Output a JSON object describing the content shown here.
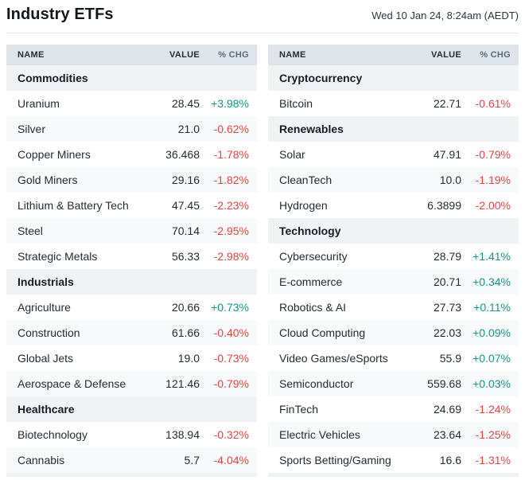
{
  "page": {
    "title": "Industry ETFs",
    "timestamp": "Wed 10 Jan 24, 8:24am (AEDT)"
  },
  "table_columns": {
    "name": "NAME",
    "value": "VALUE",
    "change": "% CHG"
  },
  "colors": {
    "positive": "#13987C",
    "negative": "#E6463F",
    "header_bar_bg": "#DEE4E9",
    "section_bg": "#F0F2F4",
    "stripe_bg": "#F8F9FA"
  },
  "tables": [
    {
      "id": "left",
      "sections": [
        {
          "label": "Commodities",
          "rows": [
            {
              "name": "Uranium",
              "value": "28.45",
              "change": "+3.98%",
              "direction": "up"
            },
            {
              "name": "Silver",
              "value": "21.0",
              "change": "-0.62%",
              "direction": "down"
            },
            {
              "name": "Copper Miners",
              "value": "36.468",
              "change": "-1.78%",
              "direction": "down"
            },
            {
              "name": "Gold Miners",
              "value": "29.16",
              "change": "-1.82%",
              "direction": "down"
            },
            {
              "name": "Lithium & Battery Tech",
              "value": "47.45",
              "change": "-2.23%",
              "direction": "down"
            },
            {
              "name": "Steel",
              "value": "70.14",
              "change": "-2.95%",
              "direction": "down"
            },
            {
              "name": "Strategic Metals",
              "value": "56.33",
              "change": "-2.98%",
              "direction": "down"
            }
          ]
        },
        {
          "label": "Industrials",
          "rows": [
            {
              "name": "Agriculture",
              "value": "20.66",
              "change": "+0.73%",
              "direction": "up"
            },
            {
              "name": "Construction",
              "value": "61.66",
              "change": "-0.40%",
              "direction": "down"
            },
            {
              "name": "Global Jets",
              "value": "19.0",
              "change": "-0.73%",
              "direction": "down"
            },
            {
              "name": "Aerospace & Defense",
              "value": "121.46",
              "change": "-0.79%",
              "direction": "down"
            }
          ]
        },
        {
          "label": "Healthcare",
          "rows": [
            {
              "name": "Biotechnology",
              "value": "138.94",
              "change": "-0.32%",
              "direction": "down"
            },
            {
              "name": "Cannabis",
              "value": "5.7",
              "change": "-4.04%",
              "direction": "down"
            }
          ]
        }
      ]
    },
    {
      "id": "right",
      "sections": [
        {
          "label": "Cryptocurrency",
          "rows": [
            {
              "name": "Bitcoin",
              "value": "22.71",
              "change": "-0.61%",
              "direction": "down"
            }
          ]
        },
        {
          "label": "Renewables",
          "rows": [
            {
              "name": "Solar",
              "value": "47.91",
              "change": "-0.79%",
              "direction": "down"
            },
            {
              "name": "CleanTech",
              "value": "10.0",
              "change": "-1.19%",
              "direction": "down"
            },
            {
              "name": "Hydrogen",
              "value": "6.3899",
              "change": "-2.00%",
              "direction": "down"
            }
          ]
        },
        {
          "label": "Technology",
          "rows": [
            {
              "name": "Cybersecurity",
              "value": "28.79",
              "change": "+1.41%",
              "direction": "up"
            },
            {
              "name": "E-commerce",
              "value": "20.71",
              "change": "+0.34%",
              "direction": "up"
            },
            {
              "name": "Robotics & AI",
              "value": "27.73",
              "change": "+0.11%",
              "direction": "up"
            },
            {
              "name": "Cloud Computing",
              "value": "22.03",
              "change": "+0.09%",
              "direction": "up"
            },
            {
              "name": "Video Games/eSports",
              "value": "55.9",
              "change": "+0.07%",
              "direction": "up"
            },
            {
              "name": "Semiconductor",
              "value": "559.68",
              "change": "+0.03%",
              "direction": "up"
            },
            {
              "name": "FinTech",
              "value": "24.69",
              "change": "-1.24%",
              "direction": "down"
            },
            {
              "name": "Electric Vehicles",
              "value": "23.64",
              "change": "-1.25%",
              "direction": "down"
            },
            {
              "name": "Sports Betting/Gaming",
              "value": "16.6",
              "change": "-1.31%",
              "direction": "down"
            }
          ]
        }
      ]
    }
  ]
}
